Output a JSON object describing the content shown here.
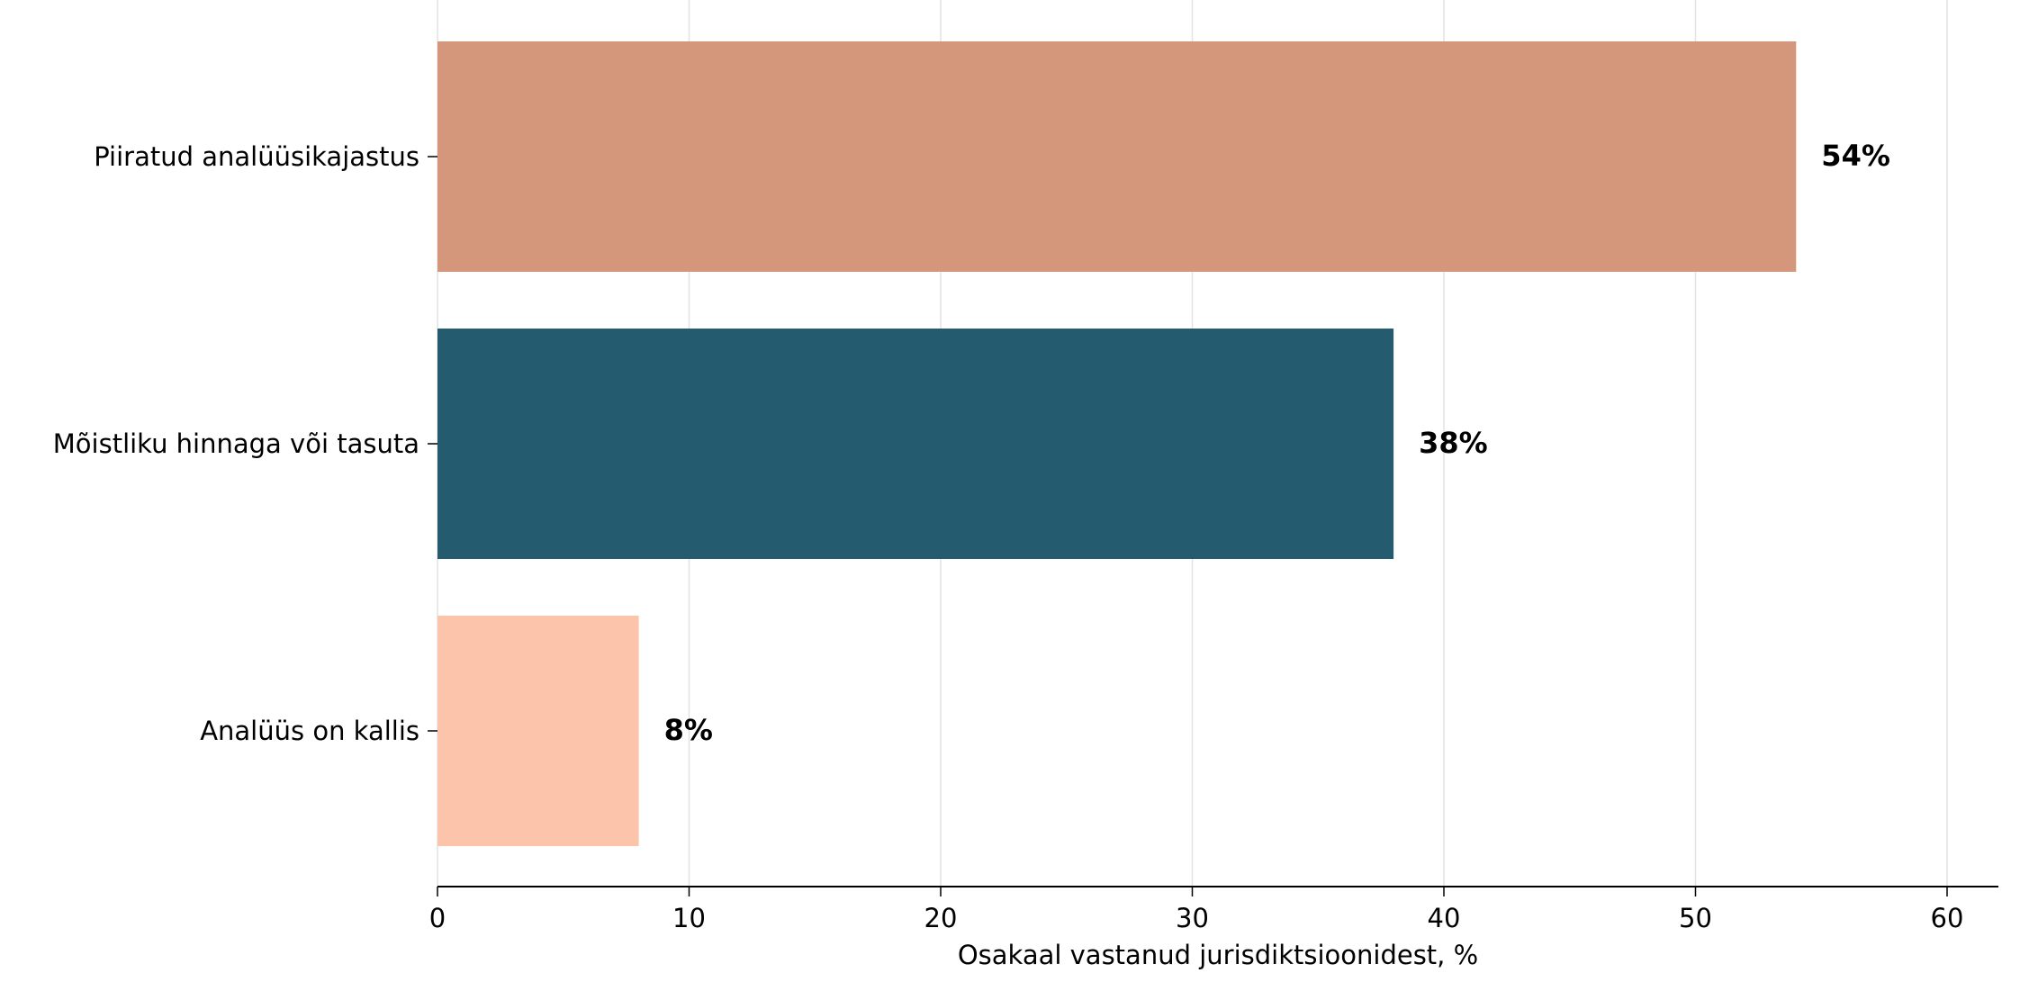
{
  "chart_data": {
    "type": "bar",
    "orientation": "horizontal",
    "categories": [
      "Piiratud analüüsikajastus",
      "Mõistliku hinnaga või tasuta",
      "Analüüs on kallis"
    ],
    "values": [
      54,
      38,
      8
    ],
    "value_labels": [
      "54%",
      "38%",
      "8%"
    ],
    "colors": [
      "#d4977b",
      "#255b6f",
      "#fbc4ab"
    ],
    "xlabel": "Osakaal vastanud jurisdiktsioonidest, %",
    "ylabel": "",
    "title": "",
    "xlim": [
      0,
      62
    ],
    "xticks": [
      0,
      10,
      20,
      30,
      40,
      50,
      60
    ],
    "grid": "x",
    "legend": "none"
  }
}
